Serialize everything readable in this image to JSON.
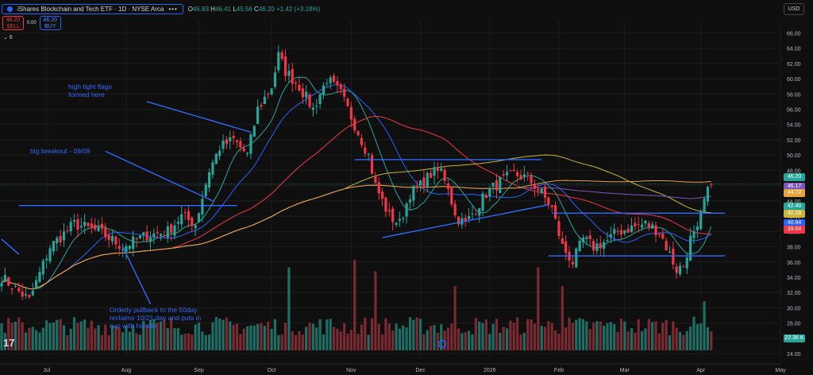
{
  "header": {
    "title": "iShares Blockchain and Tech ETF · 1D · NYSE Arca",
    "ohlc": {
      "o_label": "O",
      "o": "45.83",
      "h_label": "H",
      "h": "46.41",
      "l_label": "L",
      "l": "45.56",
      "c_label": "C",
      "c": "46.20",
      "change": "+1.42 (+3.18%)"
    }
  },
  "trade": {
    "sell_price": "46.20",
    "sell_label": "SELL",
    "spread": "0.00",
    "buy_price": "46.20",
    "buy_label": "BUY"
  },
  "indicators_count": "6",
  "currency": "USD",
  "annotations": {
    "flags": "high tight flags\nformed here",
    "breakout": "big breakout - 09/09",
    "pullback": "Orderly pullback to the 50day\nreclaims 10/21 day and puts in\ncup with handle"
  },
  "price_badges": [
    {
      "value": "46.20",
      "color": "#26a69a"
    },
    {
      "value": "46.17",
      "color": "#7e57c2"
    },
    {
      "value": "44.72",
      "color": "#e8a33a"
    },
    {
      "value": "42.40",
      "color": "#26a69a"
    },
    {
      "value": "42.28",
      "color": "#c9b63a"
    },
    {
      "value": "40.94",
      "color": "#2962ff"
    },
    {
      "value": "39.64",
      "color": "#f23645"
    },
    {
      "value": "22.36 K",
      "color": "#26a69a"
    }
  ],
  "chart_data": {
    "type": "candlestick",
    "y_ticks": [
      24,
      26,
      28,
      30,
      32,
      34,
      36,
      38,
      40,
      42,
      44,
      46,
      48,
      50,
      52,
      54,
      56,
      58,
      60,
      62,
      64,
      66
    ],
    "y_tick_labels": [
      "24.00",
      "26.00",
      "28.00",
      "30.00",
      "32.00",
      "34.00",
      "36.00",
      "38.00",
      "40.00",
      "42.00",
      "44.00",
      "46.00",
      "48.00",
      "50.00",
      "52.00",
      "54.00",
      "56.00",
      "58.00",
      "60.00",
      "62.00",
      "64.00",
      "66.00"
    ],
    "ylim": [
      23.6,
      67.6
    ],
    "x_labels": [
      {
        "label": "Jul",
        "d": 13
      },
      {
        "label": "Aug",
        "d": 36
      },
      {
        "label": "Sep",
        "d": 57
      },
      {
        "label": "Oct",
        "d": 78
      },
      {
        "label": "Nov",
        "d": 101
      },
      {
        "label": "Dec",
        "d": 121
      },
      {
        "label": "2026",
        "d": 141
      },
      {
        "label": "Feb",
        "d": 161
      },
      {
        "label": "Mar",
        "d": 180
      },
      {
        "label": "Apr",
        "d": 202
      },
      {
        "label": "May",
        "d": 225
      }
    ],
    "anchors": [
      [
        0,
        34
      ],
      [
        8,
        31
      ],
      [
        14,
        38
      ],
      [
        21,
        41
      ],
      [
        28,
        40
      ],
      [
        35,
        38
      ],
      [
        42,
        39.5
      ],
      [
        48,
        40
      ],
      [
        52,
        42
      ],
      [
        56,
        41
      ],
      [
        60,
        48
      ],
      [
        63,
        51
      ],
      [
        67,
        52
      ],
      [
        71,
        50
      ],
      [
        74,
        56
      ],
      [
        78,
        59
      ],
      [
        80,
        63
      ],
      [
        82,
        61
      ],
      [
        86,
        59
      ],
      [
        90,
        56
      ],
      [
        94,
        60
      ],
      [
        98,
        58
      ],
      [
        102,
        54
      ],
      [
        106,
        50
      ],
      [
        108,
        46
      ],
      [
        112,
        42
      ],
      [
        115,
        41
      ],
      [
        118,
        45
      ],
      [
        121,
        46
      ],
      [
        124,
        47.5
      ],
      [
        127,
        48
      ],
      [
        129,
        46
      ],
      [
        131,
        42
      ],
      [
        134,
        41
      ],
      [
        137,
        43
      ],
      [
        140,
        45
      ],
      [
        144,
        46.5
      ],
      [
        148,
        47.5
      ],
      [
        152,
        47
      ],
      [
        156,
        45
      ],
      [
        159,
        43
      ],
      [
        162,
        38
      ],
      [
        165,
        36
      ],
      [
        168,
        39
      ],
      [
        171,
        38
      ],
      [
        175,
        38.8
      ],
      [
        178,
        40
      ],
      [
        182,
        40.5
      ],
      [
        186,
        41
      ],
      [
        190,
        40
      ],
      [
        193,
        37
      ],
      [
        195,
        35
      ],
      [
        197,
        35.5
      ],
      [
        199,
        39
      ],
      [
        201,
        40
      ],
      [
        203,
        44
      ],
      [
        205,
        46.2
      ]
    ],
    "volume": {
      "ylim": [
        0,
        2000
      ],
      "base_values": [
        200,
        320,
        450
      ],
      "spike_days": [
        [
          83,
          1100
        ],
        [
          102,
          1200
        ],
        [
          108,
          1050
        ],
        [
          131,
          850
        ],
        [
          155,
          1100
        ],
        [
          162,
          850
        ],
        [
          203,
          650
        ]
      ]
    },
    "moving_averages": [
      {
        "period": 10,
        "color": "#26a69a"
      },
      {
        "period": 20,
        "color": "#2962ff"
      },
      {
        "period": 50,
        "color": "#f23645"
      },
      {
        "period": 100,
        "color": "#c9b63a"
      },
      {
        "period": 200,
        "color": "#7e57c2"
      },
      {
        "period": 150,
        "color": "#e8a33a"
      }
    ],
    "trend_lines": [
      {
        "from": [
          5,
          43.4
        ],
        "to": [
          68,
          43.4
        ]
      },
      {
        "from": [
          102,
          49.4
        ],
        "to": [
          156,
          49.4
        ]
      },
      {
        "from": [
          110,
          39.2
        ],
        "to": [
          158,
          43.5
        ]
      },
      {
        "from": [
          158,
          36.8
        ],
        "to": [
          209,
          36.8
        ]
      },
      {
        "from": [
          159,
          42.4
        ],
        "to": [
          209,
          42.4
        ]
      }
    ],
    "arrows": [
      {
        "from": [
          42,
          57
        ],
        "to": [
          72,
          53
        ]
      },
      {
        "from": [
          30,
          50.5
        ],
        "to": [
          61,
          44
        ]
      },
      {
        "from": [
          35,
          38
        ],
        "to": [
          43,
          30.5
        ]
      },
      {
        "from": [
          0,
          39
        ],
        "to": [
          5,
          37
        ]
      }
    ],
    "last_price_line": 46.2
  }
}
